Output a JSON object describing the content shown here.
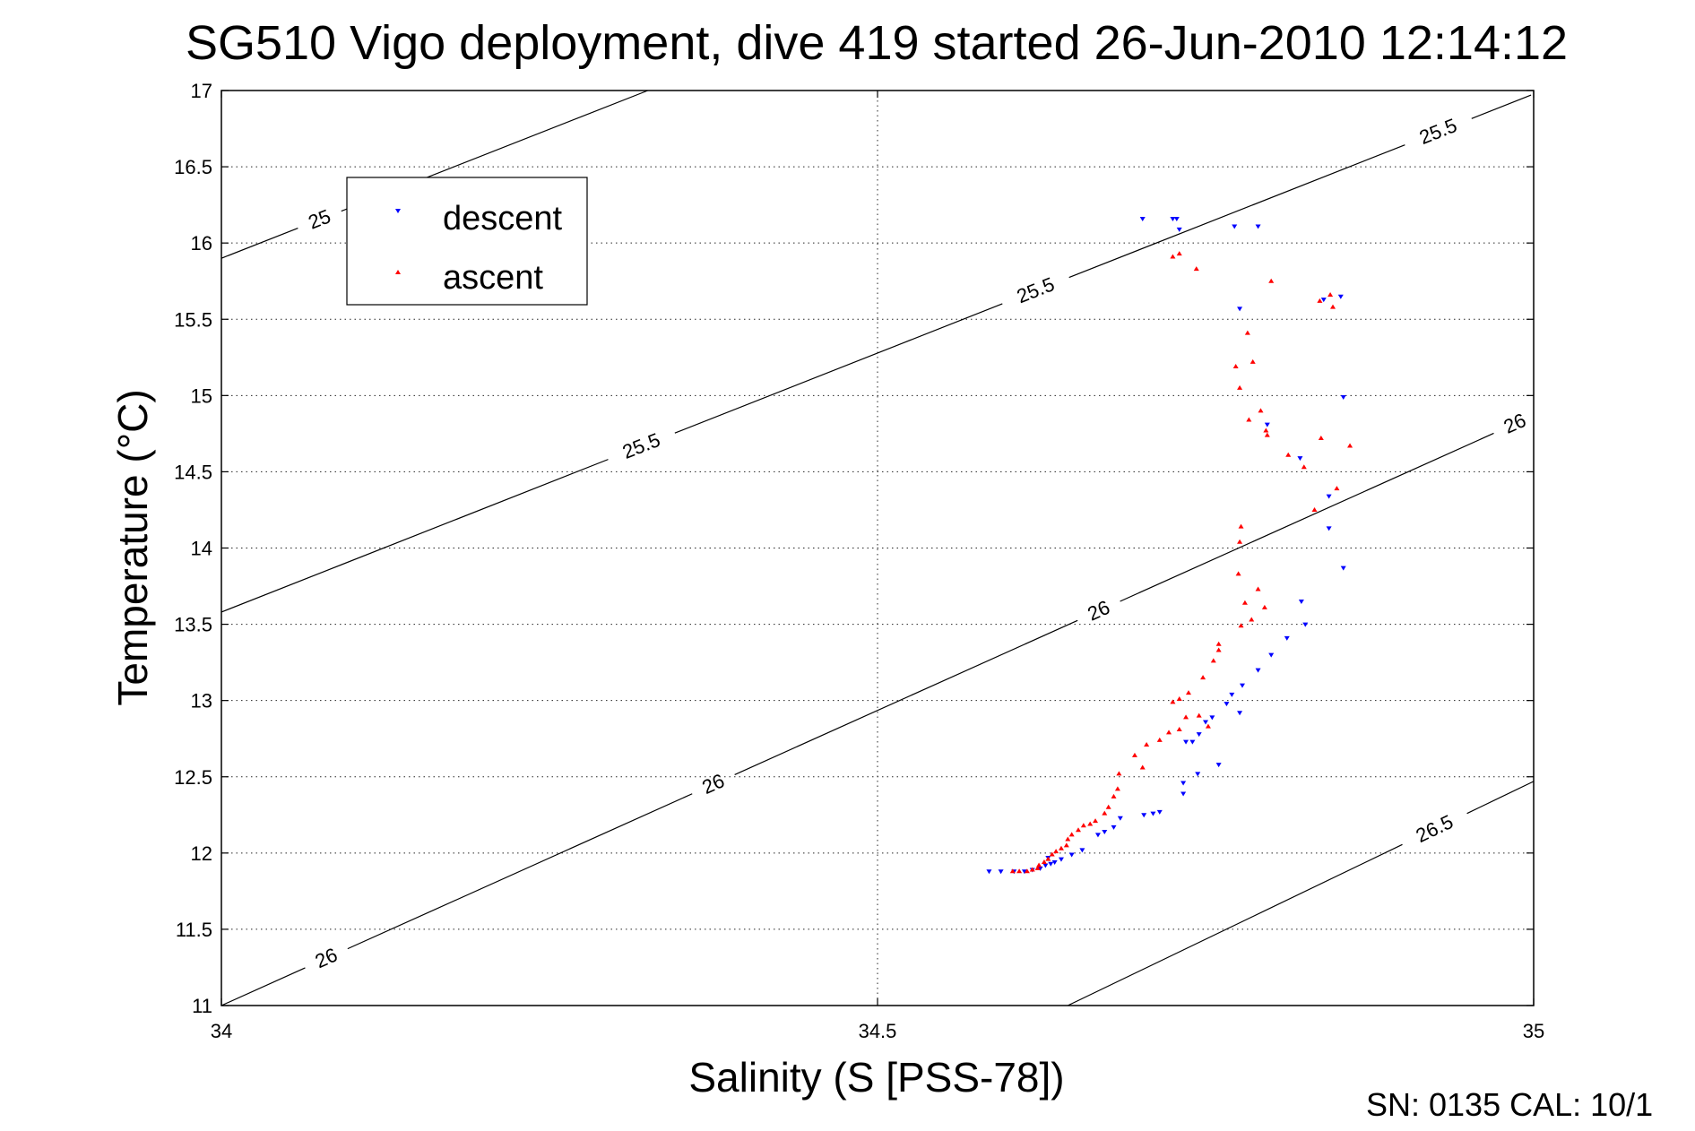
{
  "chart_data": {
    "type": "scatter",
    "title": "SG510 Vigo deployment, dive 419 started 26-Jun-2010 12:14:12",
    "xlabel": "Salinity (S [PSS-78])",
    "ylabel": "Temperature (°C)",
    "xlim": [
      34,
      35
    ],
    "ylim": [
      11,
      17
    ],
    "xticks": [
      34,
      34.5,
      35
    ],
    "xtick_labels": [
      "34",
      "34.5",
      "35"
    ],
    "yticks": [
      11,
      11.5,
      12,
      12.5,
      13,
      13.5,
      14,
      14.5,
      15,
      15.5,
      16,
      16.5,
      17
    ],
    "ytick_labels": [
      "11",
      "11.5",
      "12",
      "12.5",
      "13",
      "13.5",
      "14",
      "14.5",
      "15",
      "15.5",
      "16",
      "16.5",
      "17"
    ],
    "grid": true,
    "legend_position": "top-left",
    "footer": "SN: 0135  CAL: 10/1",
    "contours": [
      {
        "label": "25",
        "points": [
          [
            34,
            15.9
          ],
          [
            34.325,
            17
          ]
        ],
        "labels_at": [
          [
            34.075,
            16.15
          ]
        ]
      },
      {
        "label": "25.5",
        "points": [
          [
            34,
            13.58
          ],
          [
            34.998,
            16.97
          ]
        ],
        "labels_at": [
          [
            34.32,
            14.67
          ],
          [
            34.62,
            15.7
          ],
          [
            34.925,
            16.78
          ]
        ]
      },
      {
        "label": "26",
        "points": [
          [
            34,
            11
          ],
          [
            35,
            14.87
          ]
        ],
        "labels_at": [
          [
            34.08,
            11.31
          ],
          [
            34.375,
            12.45
          ],
          [
            34.668,
            13.6
          ],
          [
            34.985,
            14.83
          ]
        ]
      },
      {
        "label": "26.5",
        "points": [
          [
            34.645,
            11
          ],
          [
            35,
            12.47
          ]
        ],
        "labels_at": [
          [
            34.925,
            12.15
          ]
        ]
      }
    ],
    "series": [
      {
        "name": "descent",
        "color": "#0000ff",
        "marker": "triangle-down",
        "points": [
          [
            34.702,
            16.16
          ],
          [
            34.725,
            16.16
          ],
          [
            34.728,
            16.16
          ],
          [
            34.73,
            16.09
          ],
          [
            34.772,
            16.11
          ],
          [
            34.79,
            16.11
          ],
          [
            34.776,
            15.57
          ],
          [
            34.84,
            15.63
          ],
          [
            34.853,
            15.65
          ],
          [
            34.855,
            14.99
          ],
          [
            34.797,
            14.81
          ],
          [
            34.822,
            14.59
          ],
          [
            34.844,
            14.34
          ],
          [
            34.844,
            14.13
          ],
          [
            34.855,
            13.87
          ],
          [
            34.823,
            13.65
          ],
          [
            34.826,
            13.5
          ],
          [
            34.812,
            13.41
          ],
          [
            34.8,
            13.3
          ],
          [
            34.79,
            13.2
          ],
          [
            34.778,
            13.1
          ],
          [
            34.77,
            13.04
          ],
          [
            34.766,
            12.98
          ],
          [
            34.776,
            12.92
          ],
          [
            34.755,
            12.89
          ],
          [
            34.75,
            12.86
          ],
          [
            34.745,
            12.78
          ],
          [
            34.74,
            12.73
          ],
          [
            34.735,
            12.73
          ],
          [
            34.76,
            12.58
          ],
          [
            34.744,
            12.52
          ],
          [
            34.733,
            12.46
          ],
          [
            34.733,
            12.39
          ],
          [
            34.715,
            12.27
          ],
          [
            34.71,
            12.26
          ],
          [
            34.703,
            12.25
          ],
          [
            34.685,
            12.23
          ],
          [
            34.68,
            12.17
          ],
          [
            34.673,
            12.14
          ],
          [
            34.668,
            12.12
          ],
          [
            34.656,
            12.02
          ],
          [
            34.648,
            11.99
          ],
          [
            34.64,
            11.96
          ],
          [
            34.635,
            11.94
          ],
          [
            34.632,
            11.93
          ],
          [
            34.628,
            11.92
          ],
          [
            34.624,
            11.9
          ],
          [
            34.618,
            11.89
          ],
          [
            34.612,
            11.88
          ],
          [
            34.604,
            11.88
          ],
          [
            34.594,
            11.88
          ],
          [
            34.585,
            11.88
          ],
          [
            34.63,
            11.97
          ]
        ]
      },
      {
        "name": "ascent",
        "color": "#ff0000",
        "marker": "triangle-up",
        "points": [
          [
            34.725,
            15.91
          ],
          [
            34.73,
            15.93
          ],
          [
            34.743,
            15.83
          ],
          [
            34.8,
            15.75
          ],
          [
            34.837,
            15.62
          ],
          [
            34.845,
            15.66
          ],
          [
            34.847,
            15.58
          ],
          [
            34.782,
            15.41
          ],
          [
            34.786,
            15.22
          ],
          [
            34.773,
            15.19
          ],
          [
            34.776,
            15.05
          ],
          [
            34.792,
            14.9
          ],
          [
            34.783,
            14.84
          ],
          [
            34.797,
            14.74
          ],
          [
            34.796,
            14.77
          ],
          [
            34.813,
            14.61
          ],
          [
            34.825,
            14.53
          ],
          [
            34.838,
            14.72
          ],
          [
            34.86,
            14.67
          ],
          [
            34.85,
            14.39
          ],
          [
            34.833,
            14.25
          ],
          [
            34.777,
            14.14
          ],
          [
            34.776,
            14.04
          ],
          [
            34.775,
            13.83
          ],
          [
            34.79,
            13.73
          ],
          [
            34.78,
            13.64
          ],
          [
            34.795,
            13.61
          ],
          [
            34.785,
            13.53
          ],
          [
            34.777,
            13.49
          ],
          [
            34.76,
            13.37
          ],
          [
            34.76,
            13.33
          ],
          [
            34.756,
            13.26
          ],
          [
            34.748,
            13.15
          ],
          [
            34.737,
            13.05
          ],
          [
            34.73,
            13.01
          ],
          [
            34.725,
            12.99
          ],
          [
            34.745,
            12.9
          ],
          [
            34.735,
            12.89
          ],
          [
            34.752,
            12.83
          ],
          [
            34.73,
            12.81
          ],
          [
            34.722,
            12.79
          ],
          [
            34.715,
            12.74
          ],
          [
            34.705,
            12.71
          ],
          [
            34.696,
            12.64
          ],
          [
            34.702,
            12.56
          ],
          [
            34.684,
            12.52
          ],
          [
            34.683,
            12.42
          ],
          [
            34.68,
            12.37
          ],
          [
            34.676,
            12.3
          ],
          [
            34.673,
            12.26
          ],
          [
            34.666,
            12.21
          ],
          [
            34.662,
            12.19
          ],
          [
            34.657,
            12.18
          ],
          [
            34.653,
            12.15
          ],
          [
            34.648,
            12.12
          ],
          [
            34.645,
            12.09
          ],
          [
            34.644,
            12.05
          ],
          [
            34.64,
            12.03
          ],
          [
            34.636,
            12.01
          ],
          [
            34.633,
            11.99
          ],
          [
            34.63,
            11.96
          ],
          [
            34.627,
            11.94
          ],
          [
            34.623,
            11.92
          ],
          [
            34.622,
            11.9
          ],
          [
            34.618,
            11.89
          ],
          [
            34.614,
            11.88
          ],
          [
            34.608,
            11.88
          ],
          [
            34.603,
            11.88
          ]
        ]
      }
    ]
  }
}
